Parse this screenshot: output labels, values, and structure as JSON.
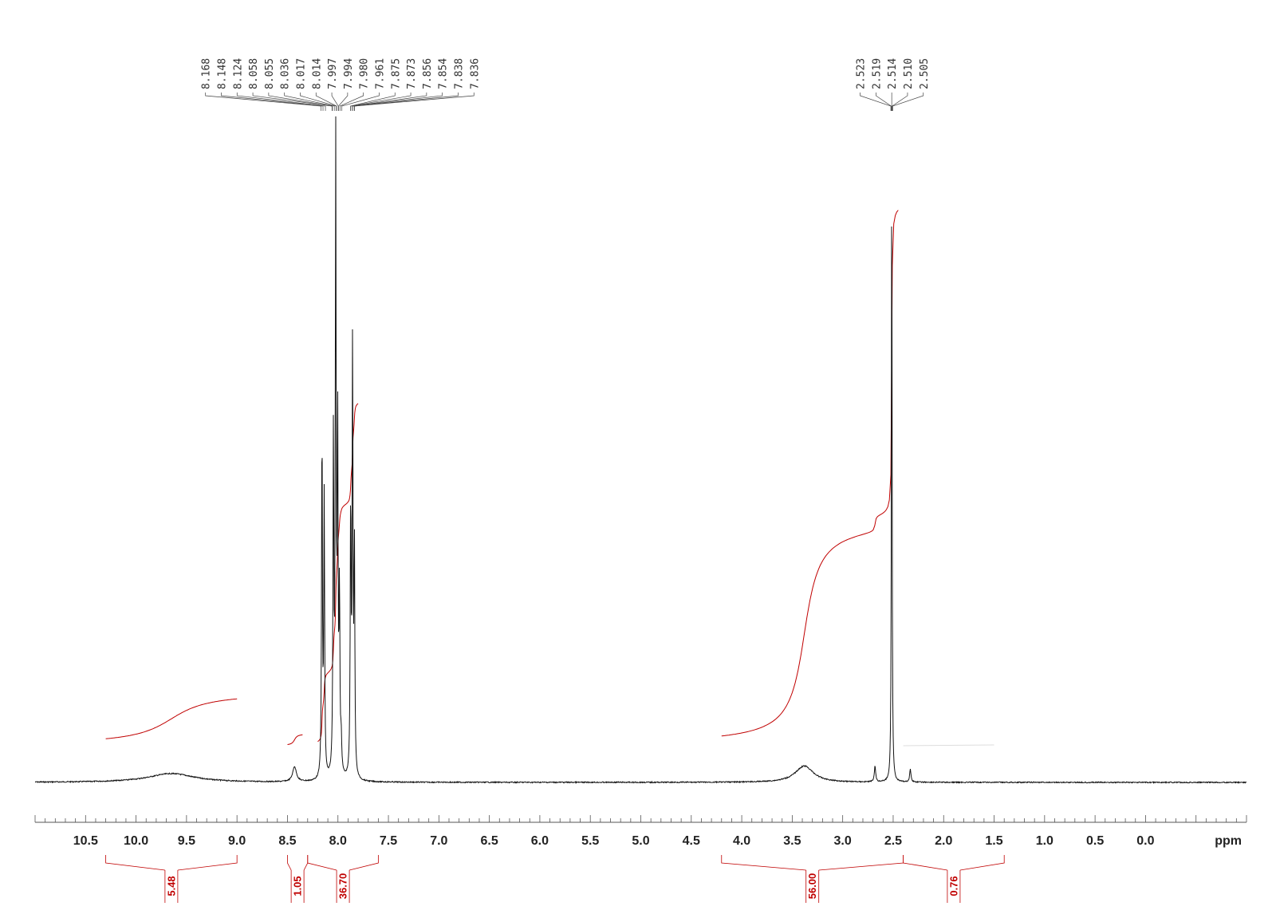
{
  "chart_data": {
    "type": "line",
    "xlabel": "ppm",
    "xlim": [
      11.0,
      -1.0
    ],
    "x_reversed": true,
    "grid": false,
    "ticks": [
      "10.5",
      "10.0",
      "9.5",
      "9.0",
      "8.5",
      "8.0",
      "7.5",
      "7.0",
      "6.5",
      "6.0",
      "5.5",
      "5.0",
      "4.5",
      "4.0",
      "3.5",
      "3.0",
      "2.5",
      "2.0",
      "1.5",
      "1.0",
      "0.5",
      "0.0"
    ],
    "tick_values": [
      10.5,
      10.0,
      9.5,
      9.0,
      8.5,
      8.0,
      7.5,
      7.0,
      6.5,
      6.0,
      5.5,
      5.0,
      4.5,
      4.0,
      3.5,
      3.0,
      2.5,
      2.0,
      1.5,
      1.0,
      0.5,
      0.0
    ],
    "peak_groups": [
      {
        "labels": [
          "8.168",
          "8.148",
          "8.124",
          "8.058",
          "8.055",
          "8.036",
          "8.017",
          "8.014",
          "7.997",
          "7.994",
          "7.980",
          "7.961",
          "7.875",
          "7.873",
          "7.856",
          "7.854",
          "7.838",
          "7.836"
        ],
        "values": [
          8.168,
          8.148,
          8.124,
          8.058,
          8.055,
          8.036,
          8.017,
          8.014,
          7.997,
          7.994,
          7.98,
          7.961,
          7.875,
          7.873,
          7.856,
          7.854,
          7.838,
          7.836
        ]
      },
      {
        "labels": [
          "2.523",
          "2.519",
          "2.514",
          "2.510",
          "2.505"
        ],
        "values": [
          2.523,
          2.519,
          2.514,
          2.51,
          2.505
        ]
      }
    ],
    "peaks": [
      {
        "ppm": 9.65,
        "height": 0.014,
        "width": 0.28
      },
      {
        "ppm": 8.43,
        "height": 0.024,
        "width": 0.022
      },
      {
        "ppm": 8.158,
        "height": 0.56,
        "width": 0.005
      },
      {
        "ppm": 8.136,
        "height": 0.44,
        "width": 0.005
      },
      {
        "ppm": 8.045,
        "height": 0.53,
        "width": 0.005
      },
      {
        "ppm": 8.022,
        "height": 0.99,
        "width": 0.005
      },
      {
        "ppm": 8.003,
        "height": 0.55,
        "width": 0.005
      },
      {
        "ppm": 7.985,
        "height": 0.28,
        "width": 0.005
      },
      {
        "ppm": 7.968,
        "height": 0.05,
        "width": 0.006
      },
      {
        "ppm": 7.874,
        "height": 0.43,
        "width": 0.005
      },
      {
        "ppm": 7.855,
        "height": 0.68,
        "width": 0.005
      },
      {
        "ppm": 7.837,
        "height": 0.36,
        "width": 0.005
      },
      {
        "ppm": 3.38,
        "height": 0.026,
        "width": 0.11
      },
      {
        "ppm": 2.68,
        "height": 0.025,
        "width": 0.008
      },
      {
        "ppm": 2.514,
        "height": 1.0,
        "width": 0.004
      },
      {
        "ppm": 2.33,
        "height": 0.02,
        "width": 0.008
      }
    ],
    "integrals": [
      {
        "label": "5.48",
        "from": 10.3,
        "to": 9.0,
        "curve_start": 10.3,
        "curve_end": 9.0,
        "rise": 0.09
      },
      {
        "label": "1.05",
        "from": 8.5,
        "to": 8.3,
        "curve_start": 8.5,
        "curve_end": 8.35,
        "rise": 0.02
      },
      {
        "label": "36.70",
        "from": 8.3,
        "to": 7.6,
        "curve_start": 8.2,
        "curve_end": 7.8,
        "rise": 0.58
      },
      {
        "label": "56.00",
        "from": 4.2,
        "to": 2.4,
        "curve_start": 4.2,
        "curve_end": 2.45,
        "rise": 0.92
      },
      {
        "label": "0.76",
        "from": 2.4,
        "to": 1.4,
        "curve_start": 2.4,
        "curve_end": 1.5,
        "rise": 0.0
      }
    ],
    "colors": {
      "spectrum": "#111111",
      "integral": "#c00000",
      "axis": "#555555",
      "labels": "#333333"
    }
  }
}
